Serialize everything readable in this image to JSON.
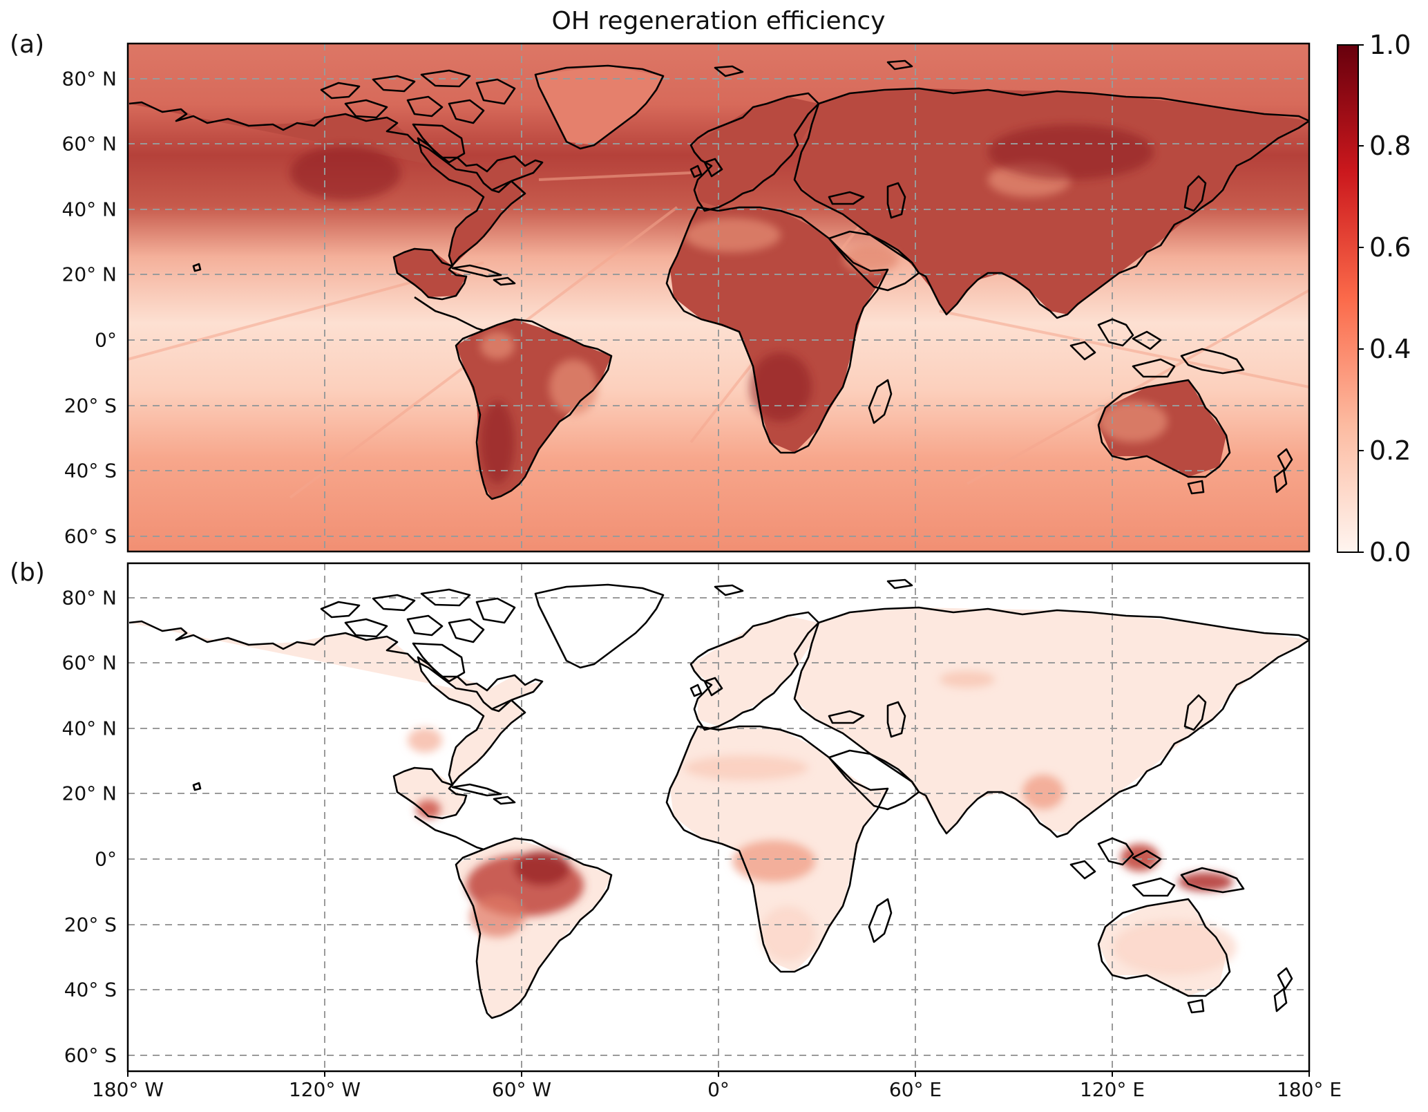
{
  "title": "OH regeneration efficiency",
  "panels": [
    {
      "label": "(a)"
    },
    {
      "label": "(b)"
    }
  ],
  "lat_ticks": [
    "80° N",
    "60° N",
    "40° N",
    "20° N",
    "0°",
    "20° S",
    "40° S",
    "60° S"
  ],
  "lon_ticks": [
    "180° W",
    "120° W",
    "60° W",
    "0°",
    "60° E",
    "120° E",
    "180° E"
  ],
  "colorbar": {
    "ticks": [
      "1.0",
      "0.8",
      "0.6",
      "0.4",
      "0.2",
      "0.0"
    ],
    "min": 0.0,
    "max": 1.0,
    "colormap": "Reds",
    "colors": [
      "#fff5f0",
      "#fcbba1",
      "#fb6a4a",
      "#cb181d",
      "#67000d"
    ]
  },
  "map": {
    "projection": "PlateCarree",
    "lon_range": [
      -180,
      180
    ],
    "lat_range": [
      -65,
      90
    ],
    "gridlines": "dashed gray",
    "coastlines": true
  },
  "chart_data": {
    "type": "heatmap",
    "title": "OH regeneration efficiency",
    "colorbar_range": [
      0.0,
      1.0
    ],
    "panel_a": {
      "ocean_background": 0.35,
      "northern_mid_latitude_band": 0.65,
      "tropical_ocean": 0.15,
      "northern_continents": 0.75,
      "southern_continents": 0.7,
      "regions_high": [
        "North America",
        "Europe",
        "Asia",
        "Africa",
        "South America",
        "Australia"
      ]
    },
    "panel_b": {
      "land_background": 0.08,
      "regions_high": [
        "Amazon",
        "Central America",
        "Central Africa",
        "Borneo",
        "New Guinea",
        "South-east Asia"
      ],
      "amazon_peak": 0.8,
      "new_guinea_peak": 0.65
    }
  }
}
